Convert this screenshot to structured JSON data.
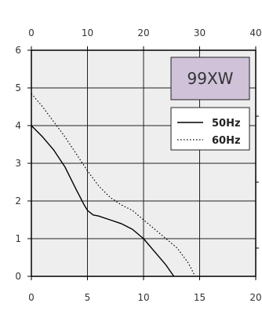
{
  "chart_data": {
    "type": "line",
    "title": "",
    "xlabel": "",
    "ylabel": "",
    "x_bottom": {
      "range": [
        0,
        20
      ],
      "ticks": [
        0,
        5,
        10,
        15,
        20
      ]
    },
    "x_top": {
      "range": [
        0,
        40
      ],
      "ticks": [
        0,
        10,
        20,
        30,
        40
      ]
    },
    "y": {
      "range": [
        0,
        6
      ],
      "ticks": [
        0,
        1,
        2,
        3,
        4,
        5,
        6
      ]
    },
    "grid": true,
    "model_label": "99XW",
    "legend": {
      "position": "top-right"
    },
    "series": [
      {
        "name": "50Hz",
        "style": "solid",
        "color": "#000000",
        "points": [
          [
            0,
            4.0
          ],
          [
            1,
            3.7
          ],
          [
            2,
            3.35
          ],
          [
            3,
            2.9
          ],
          [
            4,
            2.3
          ],
          [
            4.7,
            1.9
          ],
          [
            5,
            1.75
          ],
          [
            5.5,
            1.63
          ],
          [
            6,
            1.6
          ],
          [
            7,
            1.5
          ],
          [
            8,
            1.4
          ],
          [
            9,
            1.25
          ],
          [
            10,
            1.0
          ],
          [
            11,
            0.65
          ],
          [
            12,
            0.3
          ],
          [
            12.7,
            0.0
          ]
        ]
      },
      {
        "name": "60Hz",
        "style": "dotted",
        "color": "#000000",
        "points": [
          [
            0,
            4.85
          ],
          [
            1,
            4.5
          ],
          [
            2,
            4.1
          ],
          [
            3,
            3.7
          ],
          [
            4,
            3.25
          ],
          [
            5,
            2.8
          ],
          [
            6,
            2.4
          ],
          [
            7,
            2.1
          ],
          [
            8,
            1.9
          ],
          [
            9,
            1.75
          ],
          [
            10,
            1.5
          ],
          [
            11,
            1.25
          ],
          [
            12,
            1.0
          ],
          [
            13,
            0.75
          ],
          [
            14,
            0.35
          ],
          [
            14.6,
            0.0
          ]
        ]
      }
    ]
  },
  "colors": {
    "plot_bg": "#eeeeee",
    "label_box": "#cfc2d9",
    "axis": "#000000",
    "grid": "#222222"
  }
}
